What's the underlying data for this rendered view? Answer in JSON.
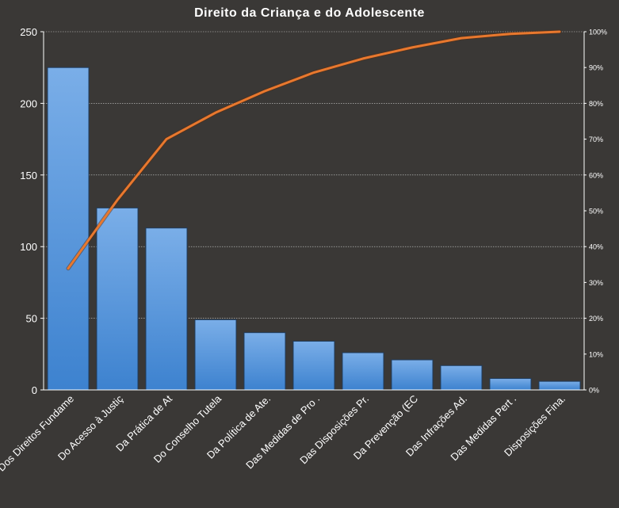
{
  "chart_data": {
    "type": "bar",
    "title": "Direito  da Criança e do Adolescente",
    "categories": [
      "Dos Direitos Fundame",
      "Do Acesso à Justiç",
      "Da Prática de At",
      "Do Conselho Tutela",
      "Da Política de Ate.",
      "Das Medidas de Pro .",
      "Das Disposições Pr.",
      "Da Prevenção (EC",
      "Das Infrações Ad.",
      "Das Medidas Pert .",
      "Disposições Fina."
    ],
    "series": [
      {
        "type": "bar",
        "axis": "left",
        "values": [
          225,
          127,
          113,
          49,
          40,
          34,
          26,
          21,
          17,
          8,
          6
        ]
      },
      {
        "type": "line",
        "axis": "right",
        "values": [
          33.9,
          53.0,
          70.0,
          77.4,
          83.4,
          88.6,
          92.5,
          95.6,
          98.2,
          99.4,
          100
        ]
      }
    ],
    "y_left": {
      "min": 0,
      "max": 250,
      "ticks": [
        "0",
        "50",
        "100",
        "150",
        "200",
        "250"
      ]
    },
    "y_right": {
      "min": 0,
      "max": 100,
      "ticks": [
        "0%",
        "10%",
        "20%",
        "30%",
        "40%",
        "50%",
        "60%",
        "70%",
        "80%",
        "90%",
        "100%"
      ]
    },
    "grid": true,
    "legend": "none",
    "colors": {
      "background": "#3a3836",
      "bar_top": "#7aaee8",
      "bar_bottom": "#3d82cf",
      "bar_stroke": "#1f3b5c",
      "line": "#e8782e",
      "text": "#ffffff",
      "grid": "#cfcfcf",
      "axis": "#ffffff"
    }
  }
}
